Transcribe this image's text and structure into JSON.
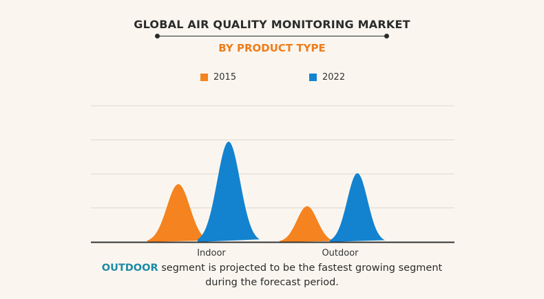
{
  "header": {
    "title": "GLOBAL AIR QUALITY MONITORING MARKET",
    "subtitle": "BY PRODUCT TYPE"
  },
  "colors": {
    "series_2015": "#f5831f",
    "series_2022": "#1383cf",
    "highlight": "#1d8aa6"
  },
  "chart_data": {
    "type": "area",
    "title": "GLOBAL AIR QUALITY MONITORING MARKET",
    "subtitle": "BY PRODUCT TYPE",
    "categories": [
      "Indoor",
      "Outdoor"
    ],
    "series": [
      {
        "name": "2015",
        "color": "#f5831f",
        "values": [
          1.7,
          1.05
        ]
      },
      {
        "name": "2022",
        "color": "#1383cf",
        "values": [
          2.95,
          2.02
        ]
      }
    ],
    "ylim": [
      0,
      4
    ],
    "grid": true,
    "legend": "top-center",
    "xlabel": "",
    "ylabel": ""
  },
  "footnote": {
    "highlight": "OUTDOOR",
    "line1_rest": " segment is projected to be the fastest growing segment",
    "line2": "during the forecast period."
  }
}
